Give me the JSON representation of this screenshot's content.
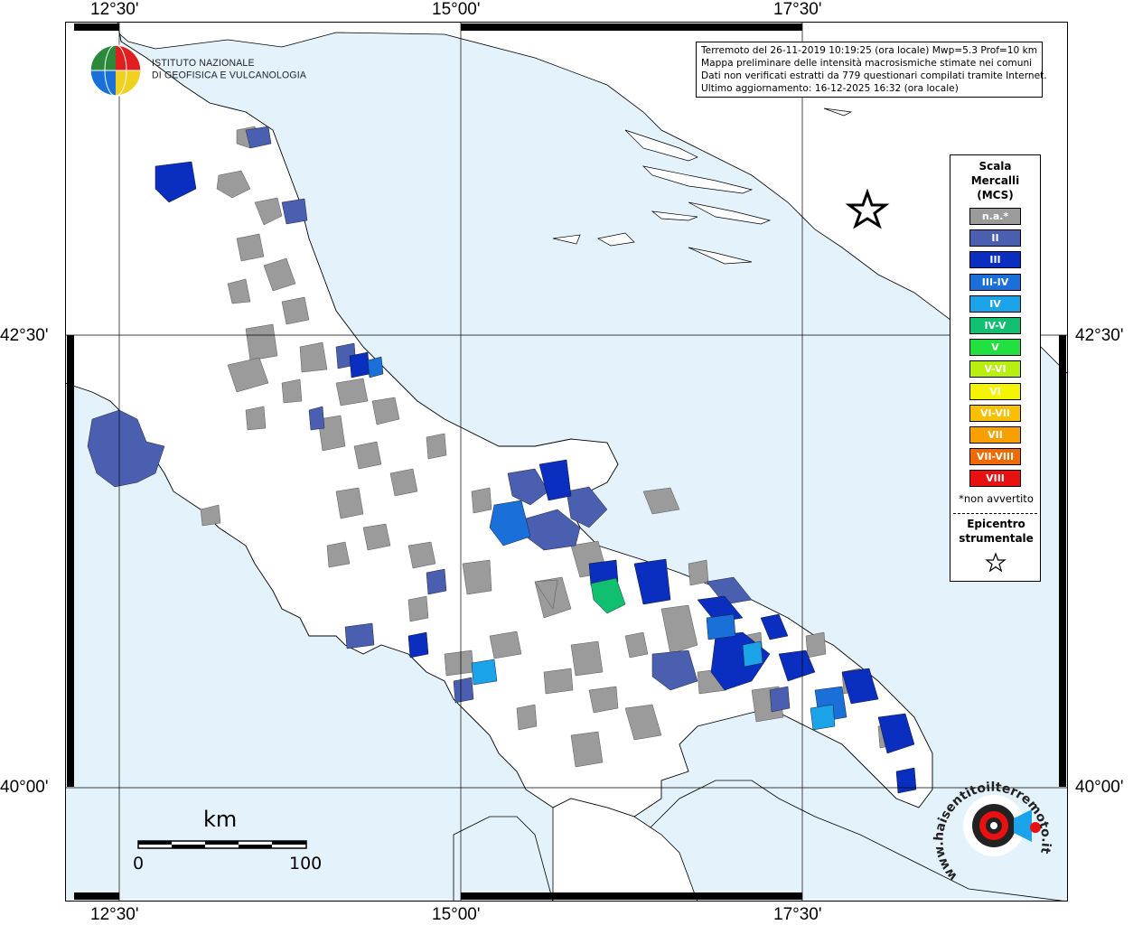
{
  "map": {
    "lon_labels": [
      "12°30'",
      "15°00'",
      "17°30'"
    ],
    "lat_labels": [
      "42°30'",
      "40°00'"
    ]
  },
  "logo": {
    "line1": "ISTITUTO NAZIONALE",
    "line2": "DI GEOFISICA E VULCANOLOGIA"
  },
  "info": {
    "line1": "Terremoto del 26-11-2019 10:19:25 (ora locale) Mwp=5.3 Prof=10 km",
    "line2": "Mappa preliminare delle intensità macrosismiche stimate nei comuni",
    "line3": "Dati non verificati estratti da 779 questionari compilati tramite Internet.",
    "line4": "Ultimo aggiornamento: 16-12-2025 16:32 (ora locale)"
  },
  "legend": {
    "title_line1": "Scala",
    "title_line2": "Mercalli",
    "title_line3": "(MCS)",
    "items": [
      {
        "label": "n.a.*",
        "color": "#9b9b9b"
      },
      {
        "label": "II",
        "color": "#4a5fb0"
      },
      {
        "label": "III",
        "color": "#0a2fc0"
      },
      {
        "label": "III-IV",
        "color": "#1a6fd8"
      },
      {
        "label": "IV",
        "color": "#1aa3e8"
      },
      {
        "label": "IV-V",
        "color": "#10c070"
      },
      {
        "label": "V",
        "color": "#22e040"
      },
      {
        "label": "V-VI",
        "color": "#b8ee10"
      },
      {
        "label": "VI",
        "color": "#f4f400"
      },
      {
        "label": "VI-VII",
        "color": "#f8c000"
      },
      {
        "label": "VII",
        "color": "#f8a000"
      },
      {
        "label": "VII-VIII",
        "color": "#f06a00"
      },
      {
        "label": "VIII",
        "color": "#e81010"
      }
    ],
    "note": "*non avvertito",
    "epicenter_line1": "Epicentro",
    "epicenter_line2": "strumentale"
  },
  "scale": {
    "unit": "km",
    "start": "0",
    "end": "100"
  },
  "badge": {
    "text": "www.haisentitoilterremoto.it"
  }
}
